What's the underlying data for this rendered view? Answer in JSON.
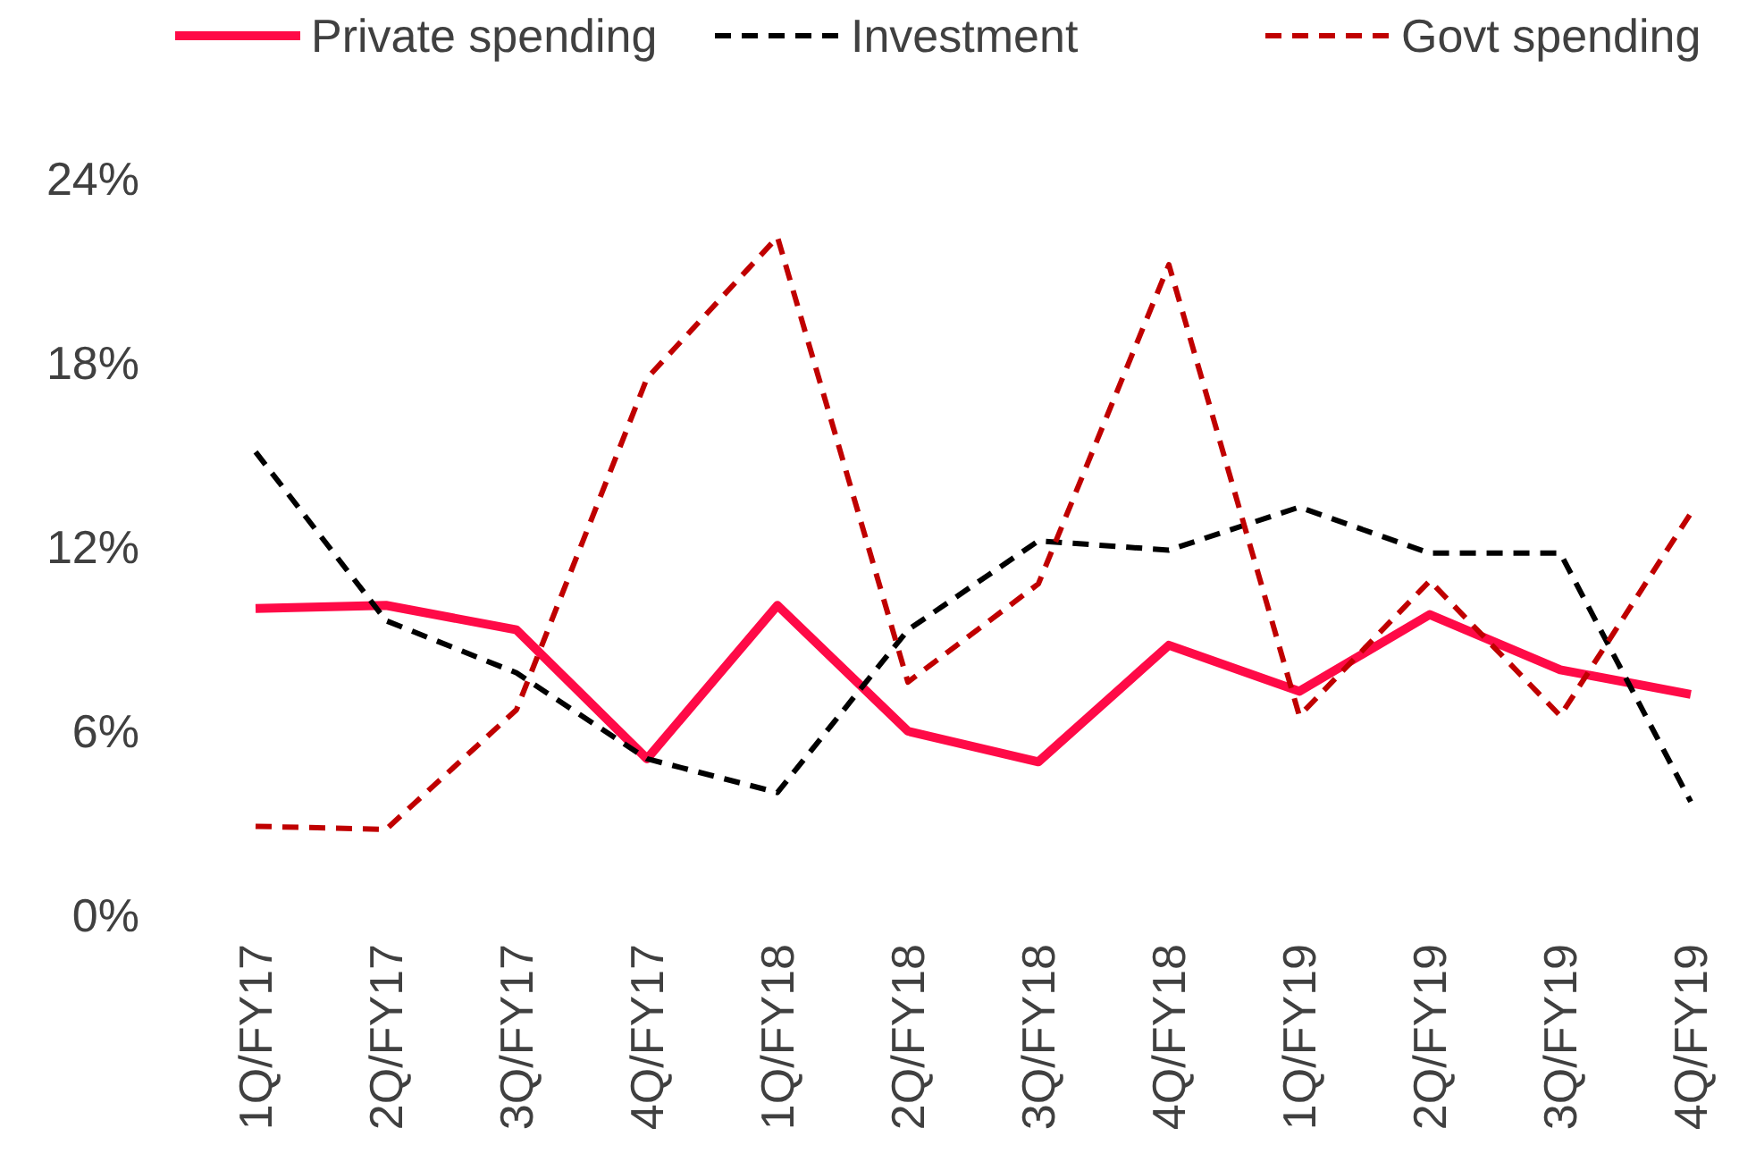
{
  "chart_data": {
    "type": "line",
    "categories": [
      "1Q/FY17",
      "2Q/FY17",
      "3Q/FY17",
      "4Q/FY17",
      "1Q/FY18",
      "2Q/FY18",
      "3Q/FY18",
      "4Q/FY18",
      "1Q/FY19",
      "2Q/FY19",
      "3Q/FY19",
      "4Q/FY19"
    ],
    "series": [
      {
        "name": "Private spending",
        "color": "#ff0a47",
        "line_style": "solid",
        "values": [
          10.0,
          10.1,
          9.3,
          5.1,
          10.1,
          6.0,
          5.0,
          8.8,
          7.3,
          9.8,
          8.0,
          7.2
        ]
      },
      {
        "name": "Investment",
        "color": "#000000",
        "line_style": "dashed",
        "values": [
          15.1,
          9.6,
          7.9,
          5.1,
          4.0,
          9.3,
          12.2,
          11.9,
          13.3,
          11.8,
          11.8,
          3.7
        ]
      },
      {
        "name": "Govt spending",
        "color": "#c00000",
        "line_style": "dashed",
        "values": [
          2.9,
          2.8,
          6.7,
          17.5,
          22.1,
          7.6,
          10.8,
          21.2,
          6.5,
          10.9,
          6.5,
          13.1
        ]
      }
    ],
    "ylim": [
      0,
      24
    ],
    "yticks": [
      {
        "value": 0,
        "label": "0%"
      },
      {
        "value": 6,
        "label": "6%"
      },
      {
        "value": 12,
        "label": "12%"
      },
      {
        "value": 18,
        "label": "18%"
      },
      {
        "value": 24,
        "label": "24%"
      }
    ],
    "grid": false,
    "legend": "top",
    "marker": "none"
  }
}
